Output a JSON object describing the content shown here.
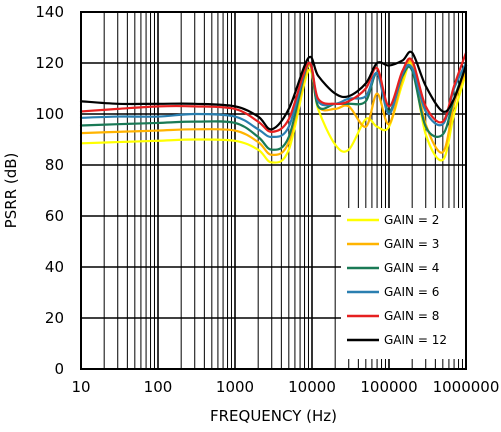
{
  "chart_data": {
    "type": "line",
    "title": "",
    "xlabel": "FREQUENCY (Hz)",
    "ylabel": "PSRR (dB)",
    "xscale": "log",
    "xlim": [
      10,
      1000000
    ],
    "ylim": [
      0,
      140
    ],
    "x_ticks": [
      10,
      100,
      1000,
      10000,
      100000,
      1000000
    ],
    "x_tick_labels": [
      "10",
      "100",
      "1000",
      "10000",
      "100000",
      "1000000"
    ],
    "y_ticks": [
      0,
      20,
      40,
      60,
      80,
      100,
      120,
      140
    ],
    "y_tick_labels": [
      "0",
      "20",
      "40",
      "60",
      "80",
      "100",
      "120",
      "140"
    ],
    "grid": true,
    "legend_position": "bottom-right",
    "x": [
      10,
      30,
      100,
      300,
      1000,
      2000,
      3000,
      5000,
      9000,
      12000,
      20000,
      30000,
      50000,
      70000,
      100000,
      150000,
      200000,
      300000,
      500000,
      700000,
      1000000
    ],
    "series": [
      {
        "name": "GAIN = 2",
        "color": "#ffff00",
        "values": [
          88.5,
          89,
          89.5,
          90,
          89.5,
          86,
          81,
          86,
          117,
          102,
          88,
          86,
          98,
          95,
          95,
          112,
          119,
          92,
          82,
          100,
          116
        ]
      },
      {
        "name": "GAIN = 3",
        "color": "#ffb400",
        "values": [
          92.5,
          93,
          93.5,
          94,
          93.5,
          89,
          84,
          89,
          119,
          103,
          102,
          103,
          95,
          108,
          96,
          114,
          120,
          96,
          85,
          104,
          117
        ]
      },
      {
        "name": "GAIN = 4",
        "color": "#1a7a56",
        "values": [
          95.5,
          96,
          96.5,
          97,
          96.5,
          91,
          86,
          91,
          120,
          103,
          104,
          104,
          105,
          116,
          101,
          115,
          117,
          95,
          92,
          106,
          119
        ]
      },
      {
        "name": "GAIN = 6",
        "color": "#2a7fb0",
        "values": [
          98.5,
          99,
          99,
          100,
          99,
          94,
          91,
          95,
          120,
          105,
          104,
          106,
          107,
          116,
          100,
          116,
          118,
          101,
          96,
          110,
          120
        ]
      },
      {
        "name": "GAIN = 8",
        "color": "#e62020",
        "values": [
          101,
          102,
          103,
          103,
          102,
          97,
          93,
          98,
          120,
          106,
          104,
          105,
          110,
          118,
          103,
          117,
          121,
          103,
          97,
          111,
          124
        ]
      },
      {
        "name": "GAIN = 12",
        "color": "#000000",
        "values": [
          105,
          104,
          104,
          104,
          103,
          99,
          94,
          102,
          122,
          115,
          108,
          107,
          112,
          120,
          119,
          121,
          124,
          111,
          101,
          106,
          119
        ]
      }
    ]
  }
}
